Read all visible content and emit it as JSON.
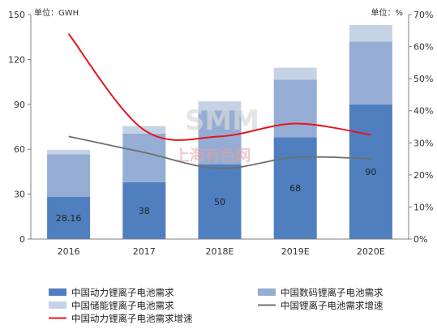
{
  "chart_data": {
    "type": "bar",
    "stacked": true,
    "categories": [
      "2016",
      "2017",
      "2018E",
      "2019E",
      "2020E"
    ],
    "left_axis": {
      "unit_label": "单位：GWH",
      "range": [
        0,
        150
      ],
      "ticks": [
        0,
        30,
        60,
        90,
        120,
        150
      ]
    },
    "right_axis": {
      "unit_label": "单位：%",
      "range": [
        0,
        70
      ],
      "ticks": [
        "0%",
        "10%",
        "20%",
        "30%",
        "40%",
        "50%",
        "60%",
        "70%"
      ]
    },
    "series": [
      {
        "name": "中国动力锂离子电池需求",
        "kind": "bar",
        "axis": "left",
        "color": "#4f7fbf",
        "values": [
          28.16,
          38,
          50,
          68,
          90
        ],
        "labels": [
          "28.16",
          "38",
          "50",
          "68",
          "90"
        ]
      },
      {
        "name": "中国数码锂离子电池需求",
        "kind": "bar",
        "axis": "left",
        "color": "#95add4",
        "values": [
          28.5,
          32.5,
          36,
          38.5,
          42
        ]
      },
      {
        "name": "中国储能锂离子电池需求",
        "kind": "bar",
        "axis": "left",
        "color": "#c5d2e6",
        "values": [
          3,
          5,
          6,
          8,
          11
        ]
      },
      {
        "name": "中国锂离子电池需求增速",
        "kind": "line",
        "axis": "right",
        "color": "#707070",
        "values": [
          32,
          27,
          22,
          25.5,
          25
        ]
      },
      {
        "name": "中国动力锂离子电池需求增速",
        "kind": "line",
        "axis": "right",
        "color": "#e8141c",
        "values": [
          64,
          34,
          32,
          36,
          32.5
        ]
      }
    ],
    "legend_position": "bottom",
    "grid": false
  },
  "watermark": {
    "logo": "SMM",
    "text": "上海有色网"
  }
}
